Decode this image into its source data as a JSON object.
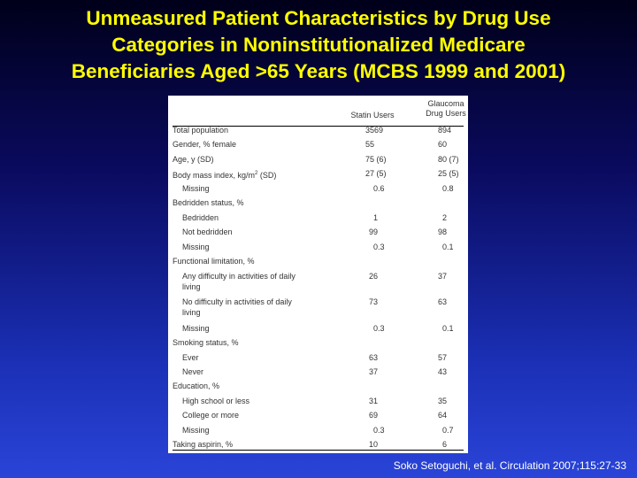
{
  "title": {
    "line1": "Unmeasured Patient Characteristics by Drug Use",
    "line2": "Categories in Noninstitutionalized Medicare",
    "line3": "Beneficiaries Aged >65 Years (MCBS 1999 and 2001)"
  },
  "table": {
    "col_statin": "Statin Users",
    "col_glaucoma_1": "Glaucoma",
    "col_glaucoma_2": "Drug Users",
    "rows": [
      {
        "label": "Total population",
        "statin": "3569",
        "glaucoma": "894"
      },
      {
        "label": "Gender, % female",
        "statin": "55",
        "glaucoma": "60"
      },
      {
        "label": "Age, y (SD)",
        "statin": "75 (6)",
        "glaucoma": "80 (7)"
      },
      {
        "label": "Body mass index, kg/m",
        "sup": "2",
        "label_tail": " (SD)",
        "statin": "27 (5)",
        "glaucoma": "25 (5)"
      },
      {
        "label": "Missing",
        "statin": "0.6",
        "glaucoma": "0.8"
      },
      {
        "label": "Bedridden status, %",
        "statin": "",
        "glaucoma": ""
      },
      {
        "label": "Bedridden",
        "statin": "1",
        "glaucoma": "2"
      },
      {
        "label": "Not bedridden",
        "statin": "99",
        "glaucoma": "98"
      },
      {
        "label": "Missing",
        "statin": "0.3",
        "glaucoma": "0.1"
      },
      {
        "label": "Functional limitation, %",
        "statin": "",
        "glaucoma": ""
      },
      {
        "label": "Any difficulty in activities of daily",
        "label2": "living",
        "statin": "26",
        "glaucoma": "37"
      },
      {
        "label": "No difficulty in activities of daily",
        "label2": "living",
        "statin": "73",
        "glaucoma": "63"
      },
      {
        "label": "Missing",
        "statin": "0.3",
        "glaucoma": "0.1"
      },
      {
        "label": "Smoking status, %",
        "statin": "",
        "glaucoma": ""
      },
      {
        "label": "Ever",
        "statin": "63",
        "glaucoma": "57"
      },
      {
        "label": "Never",
        "statin": "37",
        "glaucoma": "43"
      },
      {
        "label": "Education, %",
        "statin": "",
        "glaucoma": ""
      },
      {
        "label": "High school or less",
        "statin": "31",
        "glaucoma": "35"
      },
      {
        "label": "College or more",
        "statin": "69",
        "glaucoma": "64"
      },
      {
        "label": "Missing",
        "statin": "0.3",
        "glaucoma": "0.7"
      },
      {
        "label": "Taking aspirin, %",
        "statin": "10",
        "glaucoma": "6"
      }
    ]
  },
  "citation": "Soko Setoguchi, et al. Circulation 2007;115:27-33"
}
